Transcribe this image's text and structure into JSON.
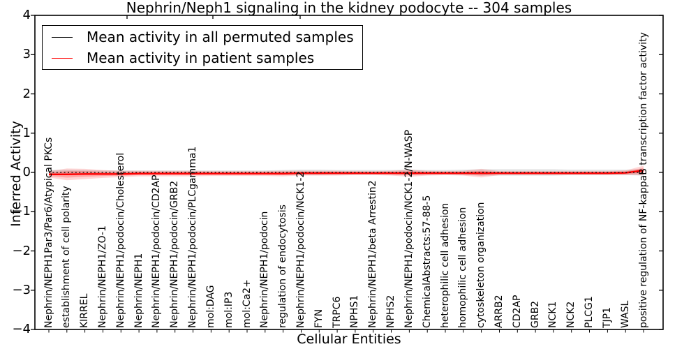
{
  "chart_data": {
    "type": "line",
    "title": "Nephrin/Neph1 signaling in the kidney podocyte -- 304 samples",
    "xlabel": "Cellular Entities",
    "ylabel": "Inferred Activity",
    "ylim": [
      -4,
      4
    ],
    "yticks": [
      4,
      3,
      2,
      1,
      0,
      -1,
      -2,
      -3,
      -4
    ],
    "ytick_labels": [
      "4",
      "3",
      "2",
      "1",
      "0",
      "−1",
      "−2",
      "−3",
      "−4"
    ],
    "grid": false,
    "legend_position": "upper left",
    "categories": [
      "Nephrin/NEPH1Par3/Par6/Atypical PKCs",
      "establishment of cell polarity",
      "KIRREL",
      "Nephrin/NEPH1/ZO-1",
      "Nephrin/NEPH1/podocin/Cholesterol",
      "Nephrin/NEPH1",
      "Nephrin/NEPH1/podocin/CD2AP",
      "Nephrin/NEPH1/podocin/GRB2",
      "Nephrin/NEPH1/podocin/PLCgamma1",
      "mol:DAG",
      "mol:IP3",
      "mol:Ca2+",
      "Nephrin/NEPH1/podocin",
      "regulation of endocytosis",
      "Nephrin/NEPH1/podocin/NCK1-2",
      "FYN",
      "TRPC6",
      "NPHS1",
      "Nephrin/NEPH1/beta Arrestin2",
      "NPHS2",
      "Nephrin/NEPH1/podocin/NCK1-2/N-WASP",
      "ChemicalAbstracts:57-88-5",
      "heterophilic cell adhesion",
      "homophilic cell adhesion",
      "cytoskeleton organization",
      "ARRB2",
      "CD2AP",
      "GRB2",
      "NCK1",
      "NCK2",
      "PLCG1",
      "TJP1",
      "WASL",
      "positive regulation of NF-kappaB transcription factor activity"
    ],
    "series": [
      {
        "name": "Mean activity in all permuted samples",
        "color": "#000000",
        "band_color": "rgba(0,0,0,0.12)",
        "line_style": "dashed",
        "values": [
          0,
          0,
          0,
          0,
          0,
          0,
          0,
          0,
          0,
          0,
          0,
          0,
          0,
          0,
          0,
          0,
          0,
          0,
          0,
          0,
          0,
          0,
          0,
          0,
          0,
          0,
          0,
          0,
          0,
          0,
          0,
          0,
          0,
          0
        ],
        "band_halfwidth": [
          0.06,
          0.07,
          0.06,
          0.05,
          0.05,
          0.05,
          0.05,
          0.05,
          0.05,
          0.05,
          0.05,
          0.05,
          0.05,
          0.06,
          0.07,
          0.07,
          0.06,
          0.06,
          0.06,
          0.06,
          0.07,
          0.06,
          0.06,
          0.07,
          0.08,
          0.08,
          0.08,
          0.08,
          0.08,
          0.07,
          0.07,
          0.07,
          0.07,
          0.08
        ]
      },
      {
        "name": "Mean activity in patient samples",
        "color": "#ff0000",
        "band_color": "rgba(255,0,0,0.16)",
        "line_style": "solid",
        "values": [
          -0.05,
          -0.05,
          -0.04,
          -0.04,
          -0.04,
          -0.03,
          -0.03,
          -0.03,
          -0.03,
          -0.03,
          -0.03,
          -0.03,
          -0.03,
          -0.03,
          -0.02,
          -0.02,
          -0.02,
          -0.02,
          -0.02,
          -0.02,
          -0.02,
          -0.02,
          -0.02,
          -0.02,
          -0.02,
          -0.02,
          -0.02,
          -0.02,
          -0.02,
          -0.02,
          -0.02,
          -0.02,
          -0.01,
          0.05
        ],
        "band_halfwidth": [
          0.08,
          0.15,
          0.13,
          0.1,
          0.08,
          0.07,
          0.07,
          0.07,
          0.07,
          0.06,
          0.06,
          0.06,
          0.06,
          0.07,
          0.06,
          0.06,
          0.06,
          0.05,
          0.05,
          0.06,
          0.09,
          0.06,
          0.05,
          0.06,
          0.11,
          0.05,
          0.05,
          0.05,
          0.05,
          0.05,
          0.05,
          0.05,
          0.06,
          0.12
        ]
      }
    ]
  },
  "legend": {
    "items": [
      {
        "label": "Mean activity in all permuted samples",
        "color": "#000000"
      },
      {
        "label": "Mean activity in patient samples",
        "color": "#ff0000"
      }
    ]
  }
}
